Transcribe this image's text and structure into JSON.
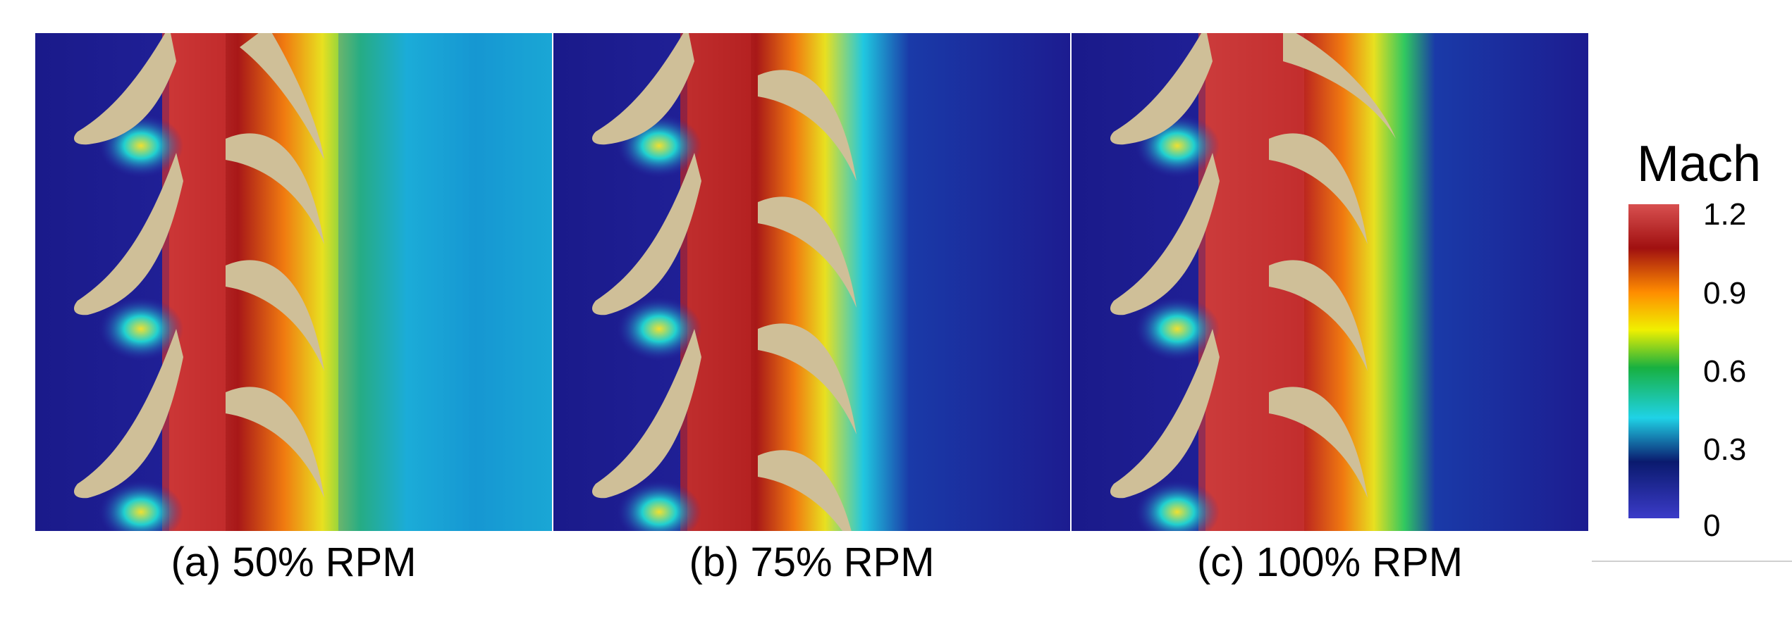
{
  "panels": [
    {
      "id": "a",
      "caption": "(a) 50% RPM",
      "rpm_percent": 50
    },
    {
      "id": "b",
      "caption": "(b) 75% RPM",
      "rpm_percent": 75
    },
    {
      "id": "c",
      "caption": "(c) 100% RPM",
      "rpm_percent": 100
    }
  ],
  "colorbar": {
    "title": "Mach",
    "ticks": [
      "1.2",
      "0.9",
      "0.6",
      "0.3",
      "0"
    ],
    "range": [
      0,
      1.2
    ],
    "colors": [
      "#3b3bc8",
      "#0a1a6e",
      "#1fd2e6",
      "#18b040",
      "#f0f000",
      "#ff8c00",
      "#a01010",
      "#d85050"
    ]
  },
  "colors": {
    "blade": "#cfbf98",
    "inlet_background": "#2a2aa8",
    "shock_region": "#d44a4a"
  }
}
